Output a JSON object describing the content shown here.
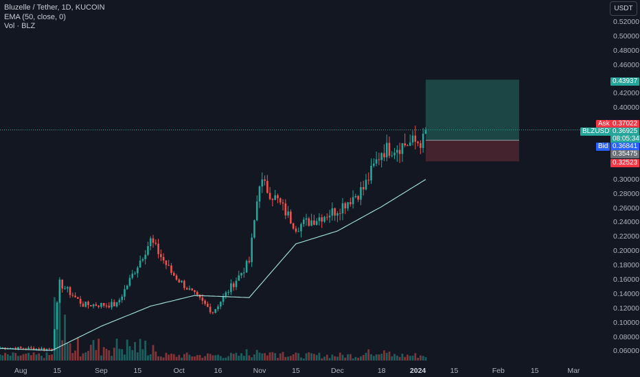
{
  "header": {
    "line1": "Bluzelle / Tether, 1D, KUCOIN",
    "line2": "EMA (50, close, 0)",
    "line3": "Vol · BLZ"
  },
  "currency_button": "USDT",
  "colors": {
    "background": "#131722",
    "up": "#26a69a",
    "down": "#ef5350",
    "ema": "#9fd9d4",
    "target_zone": "#1e4d4b",
    "stop_zone": "#4e2530",
    "ask": "#f23645",
    "bid": "#2962ff",
    "symbol": "#26a69a"
  },
  "axis": {
    "y_ticks": [
      "0.52000",
      "0.50000",
      "0.48000",
      "0.46000",
      "0.42000",
      "0.40000",
      "0.30000",
      "0.28000",
      "0.26000",
      "0.24000",
      "0.22000",
      "0.20000",
      "0.18000",
      "0.16000",
      "0.14000",
      "0.12000",
      "0.10000",
      "0.08000",
      "0.06000"
    ],
    "x_ticks": [
      {
        "label": "Aug",
        "bold": false
      },
      {
        "label": "15",
        "bold": false
      },
      {
        "label": "Sep",
        "bold": false
      },
      {
        "label": "15",
        "bold": false
      },
      {
        "label": "Oct",
        "bold": false
      },
      {
        "label": "16",
        "bold": false
      },
      {
        "label": "Nov",
        "bold": false
      },
      {
        "label": "15",
        "bold": false
      },
      {
        "label": "Dec",
        "bold": false
      },
      {
        "label": "18",
        "bold": false
      },
      {
        "label": "2024",
        "bold": true
      },
      {
        "label": "15",
        "bold": false
      },
      {
        "label": "Feb",
        "bold": false
      },
      {
        "label": "15",
        "bold": false
      },
      {
        "label": "Mar",
        "bold": false
      }
    ]
  },
  "price_tags": {
    "target": "0.43937",
    "ask_label": "Ask",
    "ask": "0.37022",
    "symbol_label": "BLZUSDT",
    "last": "0.36925",
    "countdown": "08:05:34",
    "bid_label": "Bid",
    "bid": "0.36841",
    "entry": "0.35475",
    "stop": "0.32523"
  },
  "chart_data": {
    "type": "candlestick",
    "title": "Bluzelle / Tether, 1D, KUCOIN",
    "ylim": [
      0.05,
      0.53
    ],
    "x_start": "2023-07-24",
    "x_end": "2024-03-28",
    "series": [
      {
        "name": "BLZUSDT",
        "type": "candlestick",
        "key_points": [
          {
            "x": "2023-07-24",
            "close": 0.065
          },
          {
            "x": "2023-08-13",
            "close": 0.063
          },
          {
            "x": "2023-08-16",
            "close": 0.155
          },
          {
            "x": "2023-08-25",
            "close": 0.125
          },
          {
            "x": "2023-09-07",
            "close": 0.125
          },
          {
            "x": "2023-09-20",
            "close": 0.215
          },
          {
            "x": "2023-09-28",
            "close": 0.17
          },
          {
            "x": "2023-10-05",
            "close": 0.145
          },
          {
            "x": "2023-10-14",
            "close": 0.115
          },
          {
            "x": "2023-10-28",
            "close": 0.185
          },
          {
            "x": "2023-11-01",
            "close": 0.298
          },
          {
            "x": "2023-11-08",
            "close": 0.27
          },
          {
            "x": "2023-11-15",
            "close": 0.234
          },
          {
            "x": "2023-11-30",
            "close": 0.256
          },
          {
            "x": "2023-12-11",
            "close": 0.287
          },
          {
            "x": "2023-12-18",
            "close": 0.34
          },
          {
            "x": "2023-12-28",
            "close": 0.35
          },
          {
            "x": "2024-01-03",
            "close": 0.354
          },
          {
            "x": "2024-01-04",
            "close": 0.369
          }
        ]
      },
      {
        "name": "EMA (50, close, 0)",
        "type": "line",
        "key_points": [
          {
            "x": "2023-07-24",
            "y": 0.064
          },
          {
            "x": "2023-08-13",
            "y": 0.061
          },
          {
            "x": "2023-09-01",
            "y": 0.095
          },
          {
            "x": "2023-09-20",
            "y": 0.123
          },
          {
            "x": "2023-10-07",
            "y": 0.138
          },
          {
            "x": "2023-10-28",
            "y": 0.135
          },
          {
            "x": "2023-11-15",
            "y": 0.21
          },
          {
            "x": "2023-12-01",
            "y": 0.228
          },
          {
            "x": "2023-12-18",
            "y": 0.262
          },
          {
            "x": "2024-01-04",
            "y": 0.3
          }
        ]
      }
    ],
    "position": {
      "entry": 0.35475,
      "target": 0.43937,
      "stop": 0.32523
    },
    "volume_series": "Vol · BLZ"
  }
}
